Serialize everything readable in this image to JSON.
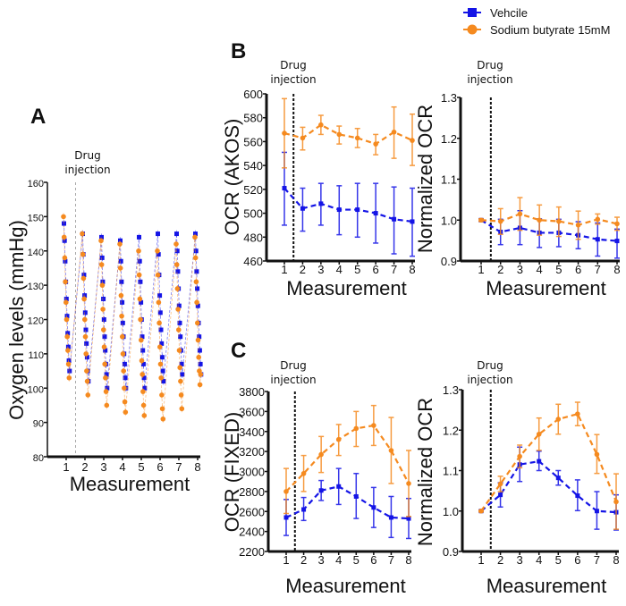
{
  "legend": {
    "entries": [
      {
        "name": "Vehcile",
        "color": "#1414e6",
        "marker": "square"
      },
      {
        "name": "Sodium butyrate 15mM",
        "color": "#f58a1f",
        "marker": "circle"
      }
    ]
  },
  "annotation": {
    "line1": "Drug",
    "line2": "injection"
  },
  "chart_data": [
    {
      "id": "A",
      "panel_label": "A",
      "type": "line",
      "title": "",
      "xlabel": "Measurement",
      "ylabel": "Oxygen levels (mmHg)",
      "ylim": [
        80,
        160
      ],
      "yticks": [
        80,
        90,
        100,
        110,
        120,
        130,
        140,
        150,
        160
      ],
      "xticks": [
        1,
        2,
        3,
        4,
        5,
        6,
        7,
        8
      ],
      "injection_after": 1.5,
      "note": "Each measurement shows a sawtooth of ~10 readings descending over time",
      "series": [
        {
          "name": "Vehcile",
          "color": "#1414e6",
          "values": [
            [
              148,
              143,
              137,
              131,
              126,
              121,
              116,
              112,
              108,
              105
            ],
            [
              145,
              139,
              133,
              127,
              122,
              117,
              113,
              109,
              105,
              102
            ],
            [
              144,
              138,
              131,
              126,
              120,
              115,
              111,
              107,
              104,
              100
            ],
            [
              143,
              137,
              131,
              125,
              119,
              115,
              110,
              107,
              103,
              100
            ],
            [
              144,
              137,
              131,
              125,
              120,
              115,
              111,
              107,
              103,
              100
            ],
            [
              145,
              139,
              133,
              127,
              122,
              117,
              113,
              109,
              105,
              102
            ],
            [
              145,
              140,
              134,
              129,
              124,
              119,
              115,
              111,
              107,
              104
            ],
            [
              145,
              140,
              134,
              129,
              124,
              119,
              115,
              111,
              107,
              104
            ]
          ]
        },
        {
          "name": "Sodium butyrate 15mM",
          "color": "#f58a1f",
          "values": [
            [
              150,
              144,
              138,
              131,
              125,
              120,
              115,
              111,
              107,
              103
            ],
            [
              145,
              139,
              132,
              126,
              120,
              115,
              110,
              105,
              102,
              98
            ],
            [
              143,
              136,
              130,
              123,
              117,
              112,
              107,
              103,
              99,
              95
            ],
            [
              142,
              135,
              127,
              121,
              115,
              110,
              105,
              100,
              96,
              93
            ],
            [
              140,
              133,
              126,
              120,
              114,
              108,
              104,
              99,
              95,
              92
            ],
            [
              140,
              133,
              125,
              119,
              112,
              107,
              103,
              98,
              94,
              91
            ],
            [
              142,
              136,
              129,
              123,
              117,
              111,
              106,
              102,
              98,
              94
            ],
            [
              144,
              138,
              131,
              125,
              119,
              114,
              109,
              105,
              101,
              104
            ]
          ]
        }
      ]
    },
    {
      "id": "B-left",
      "panel_label": "B",
      "type": "line",
      "xlabel": "Measurement",
      "ylabel": "OCR (AKOS)",
      "ylim": [
        460,
        600
      ],
      "yticks": [
        460,
        480,
        500,
        520,
        540,
        560,
        580,
        600
      ],
      "xticks": [
        1,
        2,
        3,
        4,
        5,
        6,
        7,
        8
      ],
      "injection_after": 1.5,
      "series": [
        {
          "name": "Vehcile",
          "color": "#1414e6",
          "values": [
            521,
            504,
            508,
            503,
            503,
            500,
            495,
            493
          ],
          "err_hi": [
            551,
            521,
            525,
            523,
            525,
            525,
            522,
            521
          ],
          "err_lo": [
            490,
            485,
            490,
            482,
            480,
            475,
            466,
            464
          ]
        },
        {
          "name": "Sodium butyrate 15mM",
          "color": "#f58a1f",
          "values": [
            567,
            563,
            574,
            566,
            563,
            558,
            568,
            561
          ],
          "err_hi": [
            596,
            572,
            582,
            573,
            571,
            566,
            589,
            583
          ],
          "err_lo": [
            538,
            553,
            566,
            558,
            555,
            549,
            546,
            540
          ]
        }
      ]
    },
    {
      "id": "B-right",
      "panel_label": "",
      "type": "line",
      "xlabel": "Measurement",
      "ylabel": "Normalized OCR",
      "ylim": [
        0.9,
        1.3
      ],
      "yticks": [
        0.9,
        1.0,
        1.1,
        1.2,
        1.3
      ],
      "ytick_labels": [
        "0.9",
        "1.0",
        "1.1",
        "1.2",
        "1.3"
      ],
      "xticks": [
        1,
        2,
        3,
        4,
        5,
        6,
        7,
        8
      ],
      "injection_after": 1.5,
      "series": [
        {
          "name": "Vehcile",
          "color": "#1414e6",
          "values": [
            1.0,
            0.971,
            0.981,
            0.969,
            0.969,
            0.963,
            0.953,
            0.949
          ],
          "err_hi": [
            1.003,
            1.002,
            1.023,
            1.003,
            1.002,
            0.996,
            0.993,
            0.978
          ],
          "err_lo": [
            0.997,
            0.94,
            0.94,
            0.933,
            0.935,
            0.93,
            0.912,
            0.907
          ]
        },
        {
          "name": "Sodium butyrate 15mM",
          "color": "#f58a1f",
          "values": [
            1.0,
            0.997,
            1.015,
            1.0,
            0.997,
            0.988,
            1.002,
            0.991
          ],
          "err_hi": [
            1.003,
            1.028,
            1.055,
            1.037,
            1.032,
            1.022,
            1.015,
            1.007
          ],
          "err_lo": [
            0.997,
            0.965,
            0.975,
            0.963,
            0.96,
            0.953,
            0.99,
            0.975
          ]
        }
      ]
    },
    {
      "id": "C-left",
      "panel_label": "C",
      "type": "line",
      "xlabel": "Measurement",
      "ylabel": "OCR (FIXED)",
      "ylim": [
        2200,
        3800
      ],
      "yticks": [
        2200,
        2400,
        2600,
        2800,
        3000,
        3200,
        3400,
        3600,
        3800
      ],
      "xticks": [
        1,
        2,
        3,
        4,
        5,
        6,
        7,
        8
      ],
      "injection_after": 1.5,
      "series": [
        {
          "name": "Vehcile",
          "color": "#1414e6",
          "values": [
            2540,
            2620,
            2810,
            2850,
            2750,
            2640,
            2540,
            2530
          ],
          "err_hi": [
            2720,
            2740,
            2910,
            3030,
            2980,
            2840,
            2750,
            2730
          ],
          "err_lo": [
            2360,
            2510,
            2710,
            2670,
            2530,
            2440,
            2340,
            2330
          ]
        },
        {
          "name": "Sodium butyrate 15mM",
          "color": "#f58a1f",
          "values": [
            2800,
            2980,
            3170,
            3320,
            3430,
            3460,
            3210,
            2880
          ],
          "err_hi": [
            3030,
            3160,
            3350,
            3470,
            3600,
            3660,
            3540,
            3210
          ],
          "err_lo": [
            2580,
            2800,
            2990,
            3160,
            3250,
            3260,
            2880,
            2550
          ]
        }
      ]
    },
    {
      "id": "C-right",
      "panel_label": "",
      "type": "line",
      "xlabel": "Measurement",
      "ylabel": "Normalized OCR",
      "ylim": [
        0.9,
        1.3
      ],
      "yticks": [
        0.9,
        1.0,
        1.1,
        1.2,
        1.3
      ],
      "ytick_labels": [
        "0.9",
        "1.0",
        "1.1",
        "1.2",
        "1.3"
      ],
      "xticks": [
        1,
        2,
        3,
        4,
        5,
        6,
        7,
        8
      ],
      "injection_after": 1.5,
      "series": [
        {
          "name": "Vehcile",
          "color": "#1414e6",
          "values": [
            1.0,
            1.04,
            1.115,
            1.123,
            1.082,
            1.038,
            1.0,
            0.997
          ],
          "err_hi": [
            1.002,
            1.07,
            1.158,
            1.148,
            1.1,
            1.077,
            1.048,
            1.04
          ],
          "err_lo": [
            0.998,
            1.01,
            1.073,
            1.1,
            1.064,
            1.001,
            0.955,
            0.953
          ]
        },
        {
          "name": "Sodium butyrate 15mM",
          "color": "#f58a1f",
          "values": [
            1.0,
            1.067,
            1.135,
            1.19,
            1.227,
            1.24,
            1.14,
            1.023
          ],
          "err_hi": [
            1.002,
            1.086,
            1.163,
            1.23,
            1.264,
            1.269,
            1.189,
            1.092
          ],
          "err_lo": [
            0.998,
            1.048,
            1.107,
            1.15,
            1.19,
            1.211,
            1.093,
            0.955
          ]
        }
      ]
    }
  ]
}
